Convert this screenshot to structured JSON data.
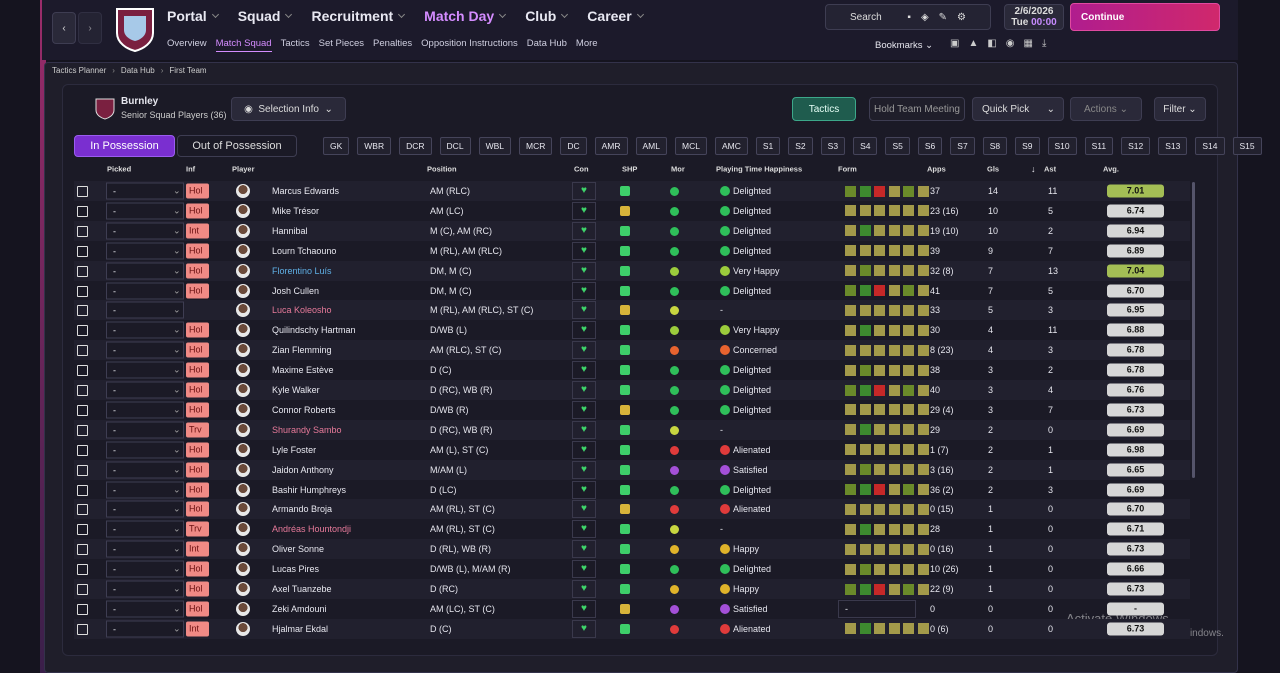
{
  "nav": {
    "main": [
      "Portal",
      "Squad",
      "Recruitment",
      "Match Day",
      "Club",
      "Career"
    ],
    "sub": [
      "Overview",
      "Match Squad",
      "Tactics",
      "Set Pieces",
      "Penalties",
      "Opposition Instructions",
      "Data Hub",
      "More"
    ],
    "search": "Search",
    "date": "2/6/2026",
    "day": "Tue",
    "time": "00:00",
    "continue": "Continue",
    "bookmarks": "Bookmarks"
  },
  "breadcrumb": [
    "Tactics Planner",
    "Data Hub",
    "First Team"
  ],
  "panel": {
    "club": "Burnley",
    "subtitle": "Senior Squad Players (36)",
    "selection_info": "Selection Info",
    "tactics": "Tactics",
    "hold_team_meeting": "Hold Team Meeting",
    "quick_pick": "Quick Pick",
    "actions": "Actions",
    "filter": "Filter",
    "tabs": [
      "In Possession",
      "Out of Possession"
    ],
    "positions": [
      "GK",
      "WBR",
      "DCR",
      "DCL",
      "WBL",
      "MCR",
      "DC",
      "AMR",
      "AML",
      "MCL",
      "AMC",
      "S1",
      "S2",
      "S3",
      "S4",
      "S5",
      "S6",
      "S7",
      "S8",
      "S9",
      "S10",
      "S11",
      "S12",
      "S13",
      "S14",
      "S15"
    ]
  },
  "table": {
    "columns": [
      "Picked",
      "Inf",
      "Player",
      "Position",
      "Con",
      "SHP",
      "Mor",
      "Playing Time Happiness",
      "Form",
      "Apps",
      "Gls",
      "Ast",
      "Avg."
    ],
    "rows": [
      {
        "picked": "-",
        "inf": "Hol",
        "name": "Marcus Edwards",
        "position": "AM (RLC)",
        "happiness": "Delighted",
        "happiness_color": "#2fbf5a",
        "apps": "37",
        "gls": 14,
        "ast": 11,
        "avg": "7.01",
        "avg_color": "#a4be55"
      },
      {
        "picked": "-",
        "inf": "Hol",
        "name": "Mike Trésor",
        "position": "AM (LC)",
        "happiness": "Delighted",
        "happiness_color": "#2fbf5a",
        "apps": "23 (16)",
        "gls": 10,
        "ast": 5,
        "avg": "6.74"
      },
      {
        "picked": "-",
        "inf": "Int",
        "name": "Hannibal",
        "position": "M (C), AM (RC)",
        "happiness": "Delighted",
        "happiness_color": "#2fbf5a",
        "apps": "19 (10)",
        "gls": 10,
        "ast": 2,
        "avg": "6.94"
      },
      {
        "picked": "-",
        "inf": "Hol",
        "name": "Lourn Tchaouno",
        "position": "M (RL), AM (RLC)",
        "happiness": "Delighted",
        "happiness_color": "#2fbf5a",
        "apps": "39",
        "gls": 9,
        "ast": 7,
        "avg": "6.89"
      },
      {
        "picked": "-",
        "inf": "Hol",
        "name": "Florentino Luís",
        "name_color": "#5fb0e6",
        "position": "DM, M (C)",
        "happiness": "Very Happy",
        "happiness_color": "#9ccc3c",
        "apps": "32 (8)",
        "gls": 7,
        "ast": 13,
        "avg": "7.04",
        "avg_color": "#a4be55"
      },
      {
        "picked": "-",
        "inf": "Hol",
        "name": "Josh Cullen",
        "position": "DM, M (C)",
        "happiness": "Delighted",
        "happiness_color": "#2fbf5a",
        "apps": "41",
        "gls": 7,
        "ast": 5,
        "avg": "6.70"
      },
      {
        "picked": "-",
        "name": "Luca Koleosho",
        "name_color": "#e77a9a",
        "position": "M (RL), AM (RLC), ST (C)",
        "happiness": "-",
        "apps": "33",
        "gls": 5,
        "ast": 3,
        "avg": "6.95"
      },
      {
        "picked": "-",
        "inf": "Hol",
        "name": "Quilindschy Hartman",
        "position": "D/WB (L)",
        "happiness": "Very Happy",
        "happiness_color": "#9ccc3c",
        "apps": "30",
        "gls": 4,
        "ast": 11,
        "avg": "6.88"
      },
      {
        "picked": "-",
        "inf": "Hol",
        "name": "Zian Flemming",
        "position": "AM (RLC), ST (C)",
        "happiness": "Concerned",
        "happiness_color": "#e8632f",
        "apps": "8 (23)",
        "gls": 4,
        "ast": 3,
        "avg": "6.78"
      },
      {
        "picked": "-",
        "inf": "Hol",
        "name": "Maxime Estève",
        "position": "D (C)",
        "happiness": "Delighted",
        "happiness_color": "#2fbf5a",
        "apps": "38",
        "gls": 3,
        "ast": 2,
        "avg": "6.78"
      },
      {
        "picked": "-",
        "inf": "Hol",
        "name": "Kyle Walker",
        "position": "D (RC), WB (R)",
        "happiness": "Delighted",
        "happiness_color": "#2fbf5a",
        "apps": "40",
        "gls": 3,
        "ast": 4,
        "avg": "6.76"
      },
      {
        "picked": "-",
        "inf": "Hol",
        "name": "Connor Roberts",
        "position": "D/WB (R)",
        "happiness": "Delighted",
        "happiness_color": "#2fbf5a",
        "apps": "29 (4)",
        "gls": 3,
        "ast": 7,
        "avg": "6.73"
      },
      {
        "picked": "-",
        "inf": "Trv",
        "name": "Shurandy Sambo",
        "name_color": "#e77a9a",
        "position": "D (RC), WB (R)",
        "happiness": "-",
        "apps": "29",
        "gls": 2,
        "ast": 0,
        "avg": "6.69"
      },
      {
        "picked": "-",
        "inf": "Hol",
        "name": "Lyle Foster",
        "position": "AM (L), ST (C)",
        "happiness": "Alienated",
        "happiness_color": "#e03b3b",
        "apps": "1 (7)",
        "gls": 2,
        "ast": 1,
        "avg": "6.98"
      },
      {
        "picked": "-",
        "inf": "Hol",
        "name": "Jaidon Anthony",
        "position": "M/AM (L)",
        "happiness": "Satisfied",
        "happiness_color": "#a450d8",
        "apps": "3 (16)",
        "gls": 2,
        "ast": 1,
        "avg": "6.65"
      },
      {
        "picked": "-",
        "inf": "Hol",
        "name": "Bashir Humphreys",
        "position": "D (LC)",
        "happiness": "Delighted",
        "happiness_color": "#2fbf5a",
        "apps": "36 (2)",
        "gls": 2,
        "ast": 3,
        "avg": "6.69"
      },
      {
        "picked": "-",
        "inf": "Hol",
        "name": "Armando Broja",
        "position": "AM (RL), ST (C)",
        "happiness": "Alienated",
        "happiness_color": "#e03b3b",
        "apps": "0 (15)",
        "gls": 1,
        "ast": 0,
        "avg": "6.70"
      },
      {
        "picked": "-",
        "inf": "Trv",
        "name": "Andréas Hountondji",
        "name_color": "#e77a9a",
        "position": "AM (RL), ST (C)",
        "happiness": "-",
        "apps": "28",
        "gls": 1,
        "ast": 0,
        "avg": "6.71"
      },
      {
        "picked": "-",
        "inf": "Int",
        "name": "Oliver Sonne",
        "position": "D (RL), WB (R)",
        "happiness": "Happy",
        "happiness_color": "#e0b32a",
        "apps": "0 (16)",
        "gls": 1,
        "ast": 0,
        "avg": "6.73"
      },
      {
        "picked": "-",
        "inf": "Hol",
        "name": "Lucas Pires",
        "position": "D/WB (L), M/AM (R)",
        "happiness": "Delighted",
        "happiness_color": "#2fbf5a",
        "apps": "10 (26)",
        "gls": 1,
        "ast": 0,
        "avg": "6.66"
      },
      {
        "picked": "-",
        "inf": "Hol",
        "name": "Axel Tuanzebe",
        "position": "D (RC)",
        "happiness": "Happy",
        "happiness_color": "#e0b32a",
        "apps": "22 (9)",
        "gls": 1,
        "ast": 0,
        "avg": "6.73"
      },
      {
        "picked": "-",
        "inf": "Hol",
        "name": "Zeki Amdouni",
        "position": "AM (LC), ST (C)",
        "happiness": "Satisfied",
        "happiness_color": "#a450d8",
        "apps": "0",
        "gls": 0,
        "ast": 0,
        "avg": "-",
        "form": "-"
      },
      {
        "picked": "-",
        "inf": "Int",
        "name": "Hjalmar Ekdal",
        "position": "D (C)",
        "happiness": "Alienated",
        "happiness_color": "#e03b3b",
        "apps": "0 (6)",
        "gls": 0,
        "ast": 0,
        "avg": "6.73"
      }
    ]
  },
  "watermark": {
    "title": "Activate Windows",
    "text": "Go to Settings to activate Windows."
  }
}
